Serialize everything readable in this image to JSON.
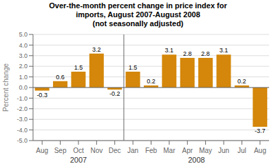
{
  "chart_data": {
    "type": "bar",
    "title": "Over-the-month percent change in price index for\nimports, August 2007-August 2008\n(not seasonally adjusted)",
    "ylabel": "Percent change",
    "categories": [
      "Aug",
      "Sep",
      "Oct",
      "Nov",
      "Dec",
      "Jan",
      "Feb",
      "Mar",
      "Apr",
      "May",
      "Jun",
      "Jul",
      "Aug"
    ],
    "values": [
      -0.3,
      0.6,
      1.5,
      3.2,
      -0.2,
      1.5,
      0.2,
      3.1,
      2.8,
      2.8,
      3.1,
      0.2,
      -3.7
    ],
    "color": "#D4870A",
    "ylim": [
      -5.0,
      5.0
    ],
    "yticks": [
      {
        "value": -5.0,
        "label": "-5.0"
      },
      {
        "value": -4.0,
        "label": "-4.0"
      },
      {
        "value": -3.0,
        "label": "-3.0"
      },
      {
        "value": -2.0,
        "label": "-2.0"
      },
      {
        "value": -1.0,
        "label": "-1.0"
      },
      {
        "value": 0.0,
        "label": "0.0"
      },
      {
        "value": 1.0,
        "label": "1.0"
      },
      {
        "value": 2.0,
        "label": "2.0"
      },
      {
        "value": 3.0,
        "label": "3.0"
      },
      {
        "value": 4.0,
        "label": "4.0"
      },
      {
        "value": 5.0,
        "label": "5.0"
      }
    ],
    "grid": true,
    "data_labels": true,
    "annotations": [
      "2007",
      "2008"
    ]
  }
}
